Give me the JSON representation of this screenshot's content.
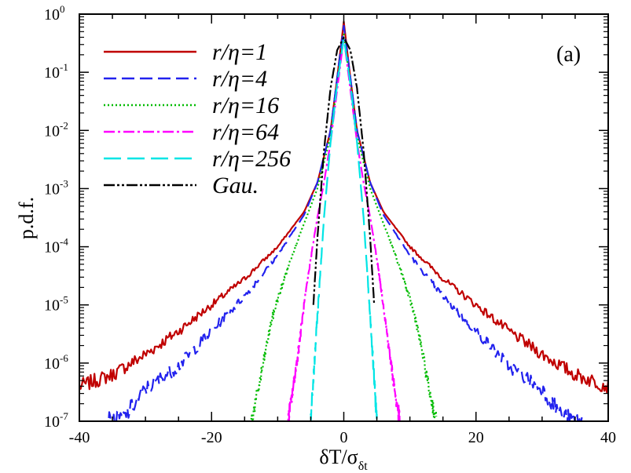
{
  "chart_data": {
    "type": "line",
    "panel_label": "(a)",
    "xlabel": "δT/σ",
    "xlabel_sub": "δt",
    "ylabel": "p.d.f.",
    "xlim": [
      -40,
      40
    ],
    "ylim_log10": [
      -7,
      0
    ],
    "x_ticks": [
      -40,
      -20,
      0,
      20,
      40
    ],
    "y_tick_exponents": [
      0,
      -1,
      -2,
      -3,
      -4,
      -5,
      -6,
      -7
    ],
    "y_tick_base": "10",
    "series": [
      {
        "name": "r/η=1",
        "color": "#c00000",
        "dash": "",
        "half_width": 40,
        "points": [
          [
            0,
            -0.13
          ],
          [
            1,
            -1.1
          ],
          [
            2,
            -2.0
          ],
          [
            4,
            -2.9
          ],
          [
            6,
            -3.4
          ],
          [
            10,
            -4.0
          ],
          [
            15,
            -4.55
          ],
          [
            20,
            -5.0
          ],
          [
            25,
            -5.45
          ],
          [
            30,
            -5.85
          ],
          [
            35,
            -6.2
          ],
          [
            40,
            -6.4
          ]
        ]
      },
      {
        "name": "r/η=4",
        "color": "#2222ee",
        "dash": "16,7",
        "half_width": 36,
        "points": [
          [
            0,
            -0.2
          ],
          [
            1,
            -1.1
          ],
          [
            2,
            -2.0
          ],
          [
            4,
            -2.9
          ],
          [
            6,
            -3.45
          ],
          [
            10,
            -4.15
          ],
          [
            15,
            -4.85
          ],
          [
            20,
            -5.45
          ],
          [
            25,
            -6.05
          ],
          [
            30,
            -6.45
          ],
          [
            33,
            -6.9
          ],
          [
            35,
            -7.0
          ]
        ]
      },
      {
        "name": "r/η=16",
        "color": "#00bb00",
        "dash": "2,3",
        "half_width": 14,
        "points": [
          [
            0,
            -0.35
          ],
          [
            1,
            -1.2
          ],
          [
            2,
            -2.1
          ],
          [
            4,
            -3.0
          ],
          [
            6,
            -3.6
          ],
          [
            8,
            -4.2
          ],
          [
            10,
            -4.9
          ],
          [
            11,
            -5.3
          ],
          [
            12,
            -5.9
          ],
          [
            13,
            -6.5
          ],
          [
            14,
            -7.0
          ]
        ]
      },
      {
        "name": "r/η=64",
        "color": "#ff00ff",
        "dash": "14,4,3,4",
        "half_width": 8.5,
        "points": [
          [
            0,
            -0.4
          ],
          [
            1,
            -1.3
          ],
          [
            2,
            -2.2
          ],
          [
            3,
            -2.9
          ],
          [
            4,
            -3.5
          ],
          [
            5,
            -4.2
          ],
          [
            6,
            -5.0
          ],
          [
            7,
            -5.9
          ],
          [
            8,
            -6.7
          ],
          [
            8.5,
            -7.0
          ]
        ]
      },
      {
        "name": "r/η=256",
        "color": "#00e5e5",
        "dash": "22,8",
        "half_width": 5,
        "points": [
          [
            0,
            -0.4
          ],
          [
            1,
            -1.2
          ],
          [
            2,
            -2.2
          ],
          [
            3,
            -3.5
          ],
          [
            4,
            -5.2
          ],
          [
            4.6,
            -6.3
          ],
          [
            5,
            -7.0
          ]
        ]
      },
      {
        "name": "Gau.",
        "color": "#000000",
        "dash": "14,3,3,3,3,3",
        "half_width": 4.6,
        "points": [
          [
            0,
            -0.4
          ],
          [
            1,
            -0.62
          ],
          [
            2,
            -1.27
          ],
          [
            3,
            -2.35
          ],
          [
            4,
            -3.87
          ],
          [
            4.6,
            -5.0
          ]
        ]
      }
    ]
  }
}
